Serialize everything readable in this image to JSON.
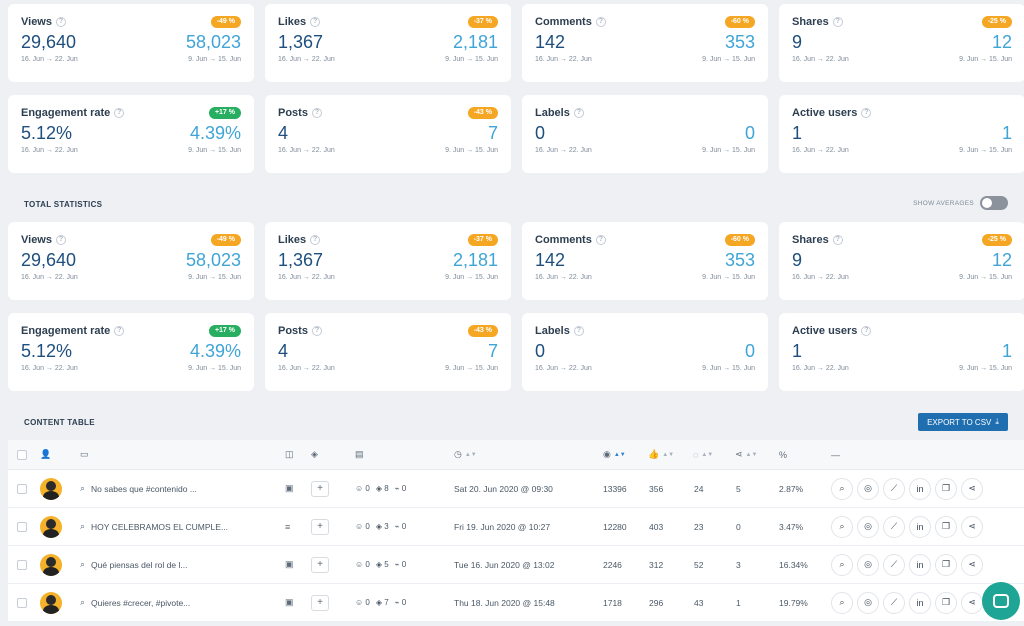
{
  "cards_top": [
    {
      "title": "Views",
      "badge": "-49 %",
      "kind": "neg",
      "current": "29,640",
      "previous": "58,023",
      "cur_range": "16. Jun → 22. Jun",
      "prev_range": "9. Jun → 15. Jun"
    },
    {
      "title": "Likes",
      "badge": "-37 %",
      "kind": "neg",
      "current": "1,367",
      "previous": "2,181",
      "cur_range": "16. Jun → 22. Jun",
      "prev_range": "9. Jun → 15. Jun"
    },
    {
      "title": "Comments",
      "badge": "-60 %",
      "kind": "neg",
      "current": "142",
      "previous": "353",
      "cur_range": "16. Jun → 22. Jun",
      "prev_range": "9. Jun → 15. Jun"
    },
    {
      "title": "Shares",
      "badge": "-25 %",
      "kind": "neg",
      "current": "9",
      "previous": "12",
      "cur_range": "16. Jun → 22. Jun",
      "prev_range": "9. Jun → 15. Jun"
    },
    {
      "title": "Engagement rate",
      "badge": "+17 %",
      "kind": "pos",
      "current": "5.12%",
      "previous": "4.39%",
      "cur_range": "16. Jun → 22. Jun",
      "prev_range": "9. Jun → 15. Jun"
    },
    {
      "title": "Posts",
      "badge": "-43 %",
      "kind": "neg",
      "current": "4",
      "previous": "7",
      "cur_range": "16. Jun → 22. Jun",
      "prev_range": "9. Jun → 15. Jun"
    },
    {
      "title": "Labels",
      "badge": "",
      "kind": "",
      "current": "0",
      "previous": "0",
      "cur_range": "16. Jun → 22. Jun",
      "prev_range": "9. Jun → 15. Jun"
    },
    {
      "title": "Active users",
      "badge": "",
      "kind": "",
      "current": "1",
      "previous": "1",
      "cur_range": "16. Jun → 22. Jun",
      "prev_range": "9. Jun → 15. Jun"
    }
  ],
  "total_statistics": {
    "title": "TOTAL STATISTICS",
    "toggle_label": "SHOW AVERAGES",
    "cards": [
      {
        "title": "Views",
        "badge": "-49 %",
        "kind": "neg",
        "current": "29,640",
        "previous": "58,023",
        "cur_range": "16. Jun → 22. Jun",
        "prev_range": "9. Jun → 15. Jun"
      },
      {
        "title": "Likes",
        "badge": "-37 %",
        "kind": "neg",
        "current": "1,367",
        "previous": "2,181",
        "cur_range": "16. Jun → 22. Jun",
        "prev_range": "9. Jun → 15. Jun"
      },
      {
        "title": "Comments",
        "badge": "-60 %",
        "kind": "neg",
        "current": "142",
        "previous": "353",
        "cur_range": "16. Jun → 22. Jun",
        "prev_range": "9. Jun → 15. Jun"
      },
      {
        "title": "Shares",
        "badge": "-25 %",
        "kind": "neg",
        "current": "9",
        "previous": "12",
        "cur_range": "16. Jun → 22. Jun",
        "prev_range": "9. Jun → 15. Jun"
      },
      {
        "title": "Engagement rate",
        "badge": "+17 %",
        "kind": "pos",
        "current": "5.12%",
        "previous": "4.39%",
        "cur_range": "16. Jun → 22. Jun",
        "prev_range": "9. Jun → 15. Jun"
      },
      {
        "title": "Posts",
        "badge": "-43 %",
        "kind": "neg",
        "current": "4",
        "previous": "7",
        "cur_range": "16. Jun → 22. Jun",
        "prev_range": "9. Jun → 15. Jun"
      },
      {
        "title": "Labels",
        "badge": "",
        "kind": "",
        "current": "0",
        "previous": "0",
        "cur_range": "16. Jun → 22. Jun",
        "prev_range": "9. Jun → 15. Jun"
      },
      {
        "title": "Active users",
        "badge": "",
        "kind": "",
        "current": "1",
        "previous": "1",
        "cur_range": "16. Jun → 22. Jun",
        "prev_range": "9. Jun → 15. Jun"
      }
    ]
  },
  "content_table": {
    "title": "CONTENT TABLE",
    "export_label": "EXPORT TO CSV",
    "header": {
      "percent": "%",
      "dash": "—"
    },
    "rows": [
      {
        "text": "No sabes que #contenido ...",
        "type": "image",
        "comments": "0",
        "labels": "8",
        "links": "0",
        "date": "Sat 20. Jun 2020 @ 09:30",
        "views": "13396",
        "likes": "356",
        "comment_count": "24",
        "shares": "5",
        "rate": "2.87%"
      },
      {
        "text": "HOY CELEBRAMOS EL CUMPLE...",
        "type": "text",
        "comments": "0",
        "labels": "3",
        "links": "0",
        "date": "Fri 19. Jun 2020 @ 10:27",
        "views": "12280",
        "likes": "403",
        "comment_count": "23",
        "shares": "0",
        "rate": "3.47%"
      },
      {
        "text": "Qué piensas del rol de l...",
        "type": "image",
        "comments": "0",
        "labels": "5",
        "links": "0",
        "date": "Tue 16. Jun 2020 @ 13:02",
        "views": "2246",
        "likes": "312",
        "comment_count": "52",
        "shares": "3",
        "rate": "16.34%"
      },
      {
        "text": "Quieres #crecer, #pivote...",
        "type": "image",
        "comments": "0",
        "labels": "7",
        "links": "0",
        "date": "Thu 18. Jun 2020 @ 15:48",
        "views": "1718",
        "likes": "296",
        "comment_count": "43",
        "shares": "1",
        "rate": "19.79%"
      }
    ]
  }
}
